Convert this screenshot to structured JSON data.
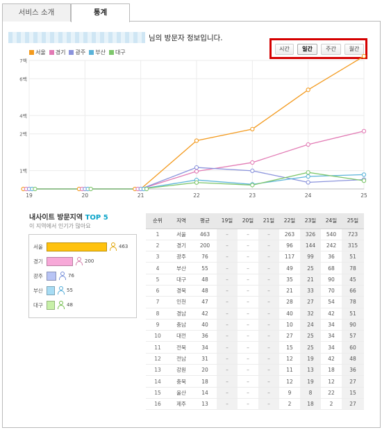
{
  "tabs": [
    {
      "label": "서비스 소개",
      "active": false
    },
    {
      "label": "통계",
      "active": true
    }
  ],
  "owner_suffix": "님의 방문자 정보입니다.",
  "period_buttons": [
    {
      "label": "시간",
      "active": false
    },
    {
      "label": "일간",
      "active": true
    },
    {
      "label": "주간",
      "active": false
    },
    {
      "label": "월간",
      "active": false
    }
  ],
  "chart_data": {
    "type": "line",
    "x": [
      "19",
      "20",
      "21",
      "22",
      "23",
      "24",
      "25"
    ],
    "y_ticks": [
      "1백",
      "2백",
      "4백",
      "6백",
      "7백"
    ],
    "ylim": [
      0,
      7
    ],
    "series": [
      {
        "name": "서울",
        "color": "#f39a1e",
        "values": [
          0,
          0,
          0,
          2.63,
          3.26,
          5.4,
          7.23
        ]
      },
      {
        "name": "경기",
        "color": "#e27ab4",
        "values": [
          0,
          0,
          0,
          0.96,
          1.44,
          2.42,
          3.15
        ]
      },
      {
        "name": "광주",
        "color": "#8a93dc",
        "values": [
          0,
          0,
          0,
          1.17,
          0.99,
          0.36,
          0.51
        ]
      },
      {
        "name": "부산",
        "color": "#5ab3d9",
        "values": [
          0,
          0,
          0,
          0.49,
          0.25,
          0.68,
          0.78
        ]
      },
      {
        "name": "대구",
        "color": "#7dc66b",
        "values": [
          0,
          0,
          0,
          0.35,
          0.21,
          0.9,
          0.45
        ]
      }
    ],
    "grid": true,
    "legend_position": "top-left"
  },
  "top5": {
    "title_prefix": "내사이트 방문지역 ",
    "title_accent": "TOP 5",
    "subtitle": "이 지역에서 인기가 많아요",
    "items": [
      {
        "region": "서울",
        "value": "463",
        "fraction": 1.0,
        "color": "#ffc20e",
        "icon_color": "#e0a300"
      },
      {
        "region": "경기",
        "value": "200",
        "fraction": 0.432,
        "color": "#f7a8d8",
        "icon_color": "#d37aa8"
      },
      {
        "region": "광주",
        "value": "76",
        "fraction": 0.164,
        "color": "#b8c4f5",
        "icon_color": "#6f8ad8"
      },
      {
        "region": "부산",
        "value": "55",
        "fraction": 0.119,
        "color": "#a7dcf4",
        "icon_color": "#4ba9d7"
      },
      {
        "region": "대구",
        "value": "48",
        "fraction": 0.104,
        "color": "#c7f0a8",
        "icon_color": "#6fbc48"
      }
    ]
  },
  "table": {
    "headers": [
      "순위",
      "지역",
      "평균",
      "19일",
      "20일",
      "21일",
      "22일",
      "23일",
      "24일",
      "25일"
    ],
    "rows": [
      [
        "1",
        "서울",
        "463",
        "–",
        "–",
        "–",
        "263",
        "326",
        "540",
        "723"
      ],
      [
        "2",
        "경기",
        "200",
        "–",
        "–",
        "–",
        "96",
        "144",
        "242",
        "315"
      ],
      [
        "3",
        "광주",
        "76",
        "–",
        "–",
        "–",
        "117",
        "99",
        "36",
        "51"
      ],
      [
        "4",
        "부산",
        "55",
        "–",
        "–",
        "–",
        "49",
        "25",
        "68",
        "78"
      ],
      [
        "5",
        "대구",
        "48",
        "–",
        "–",
        "–",
        "35",
        "21",
        "90",
        "45"
      ],
      [
        "6",
        "경북",
        "48",
        "–",
        "–",
        "–",
        "21",
        "33",
        "70",
        "66"
      ],
      [
        "7",
        "인천",
        "47",
        "–",
        "–",
        "–",
        "28",
        "27",
        "54",
        "78"
      ],
      [
        "8",
        "경남",
        "42",
        "–",
        "–",
        "–",
        "40",
        "32",
        "42",
        "51"
      ],
      [
        "9",
        "충남",
        "40",
        "–",
        "–",
        "–",
        "10",
        "24",
        "34",
        "90"
      ],
      [
        "10",
        "대전",
        "36",
        "–",
        "–",
        "–",
        "27",
        "25",
        "34",
        "57"
      ],
      [
        "11",
        "전북",
        "34",
        "–",
        "–",
        "–",
        "15",
        "25",
        "34",
        "60"
      ],
      [
        "12",
        "전남",
        "31",
        "–",
        "–",
        "–",
        "12",
        "19",
        "42",
        "48"
      ],
      [
        "13",
        "강원",
        "20",
        "–",
        "–",
        "–",
        "11",
        "13",
        "18",
        "36"
      ],
      [
        "14",
        "충북",
        "18",
        "–",
        "–",
        "–",
        "12",
        "19",
        "12",
        "27"
      ],
      [
        "15",
        "울산",
        "14",
        "–",
        "–",
        "–",
        "9",
        "8",
        "22",
        "15"
      ],
      [
        "16",
        "제주",
        "13",
        "–",
        "–",
        "–",
        "2",
        "18",
        "2",
        "27"
      ]
    ]
  }
}
